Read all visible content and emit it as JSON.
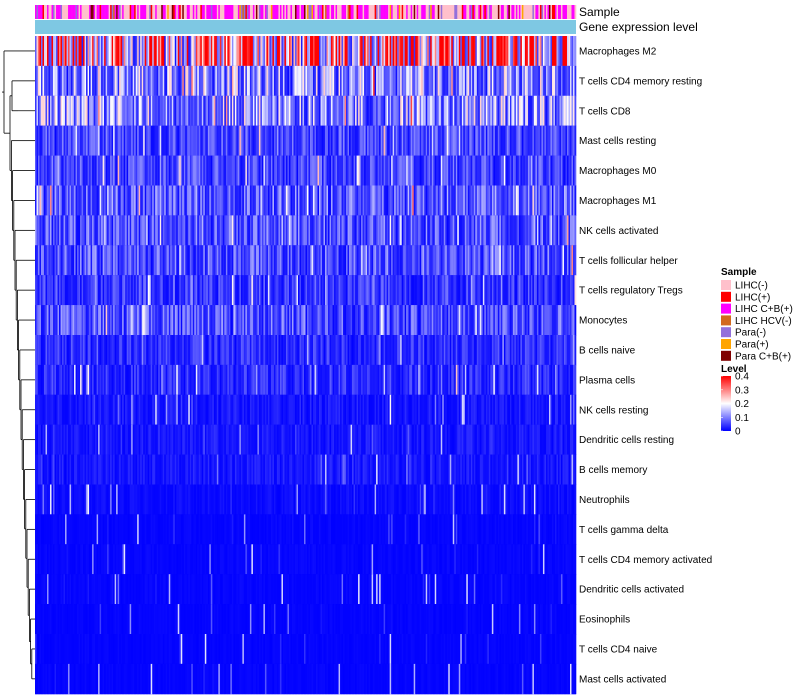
{
  "chart_data": {
    "type": "heatmap",
    "title": "",
    "column_annotations": [
      {
        "name": "Sample",
        "label": "Sample"
      },
      {
        "name": "Gene expression level",
        "label": "Gene expression level",
        "color": "#7ec8e3"
      }
    ],
    "rows": [
      {
        "name": "Macrophages M2",
        "mean": 0.3
      },
      {
        "name": "T cells CD4 memory resting",
        "mean": 0.13
      },
      {
        "name": "T cells CD8",
        "mean": 0.13
      },
      {
        "name": "Mast cells resting",
        "mean": 0.06
      },
      {
        "name": "Macrophages M0",
        "mean": 0.06
      },
      {
        "name": "Macrophages M1",
        "mean": 0.08
      },
      {
        "name": "NK cells activated",
        "mean": 0.07
      },
      {
        "name": "T cells follicular helper",
        "mean": 0.07
      },
      {
        "name": "T cells regulatory  Tregs",
        "mean": 0.05
      },
      {
        "name": "Monocytes",
        "mean": 0.07
      },
      {
        "name": "B cells naive",
        "mean": 0.04
      },
      {
        "name": "Plasma cells",
        "mean": 0.04
      },
      {
        "name": "NK cells resting",
        "mean": 0.02
      },
      {
        "name": "Dendritic cells resting",
        "mean": 0.02
      },
      {
        "name": "B cells memory",
        "mean": 0.02
      },
      {
        "name": "Neutrophils",
        "mean": 0.01
      },
      {
        "name": "T cells gamma delta",
        "mean": 0.005
      },
      {
        "name": "T cells CD4 memory activated",
        "mean": 0.005
      },
      {
        "name": "Dendritic cells activated",
        "mean": 0.005
      },
      {
        "name": "Eosinophils",
        "mean": 0.004
      },
      {
        "name": "T cells CD4 naive",
        "mean": 0.004
      },
      {
        "name": "Mast cells activated",
        "mean": 0.004
      }
    ],
    "sample_legend": {
      "title": "Sample",
      "items": [
        {
          "label": "LIHC(-)",
          "color": "#ffc0cb"
        },
        {
          "label": "LIHC(+)",
          "color": "#ff0000"
        },
        {
          "label": "LIHC C+B(+)",
          "color": "#ff00ff"
        },
        {
          "label": "LIHC HCV(-)",
          "color": "#d2691e"
        },
        {
          "label": "Para(-)",
          "color": "#9370db"
        },
        {
          "label": "Para(+)",
          "color": "#ffa500"
        },
        {
          "label": "Para C+B(+)",
          "color": "#800000"
        }
      ]
    },
    "level_legend": {
      "title": "Level",
      "ticks": [
        "0.4",
        "0.3",
        "0.2",
        "0.1",
        "0"
      ],
      "range": [
        0,
        0.4
      ],
      "colors": [
        "#0000ff",
        "#ffffff",
        "#ff0000"
      ]
    }
  }
}
